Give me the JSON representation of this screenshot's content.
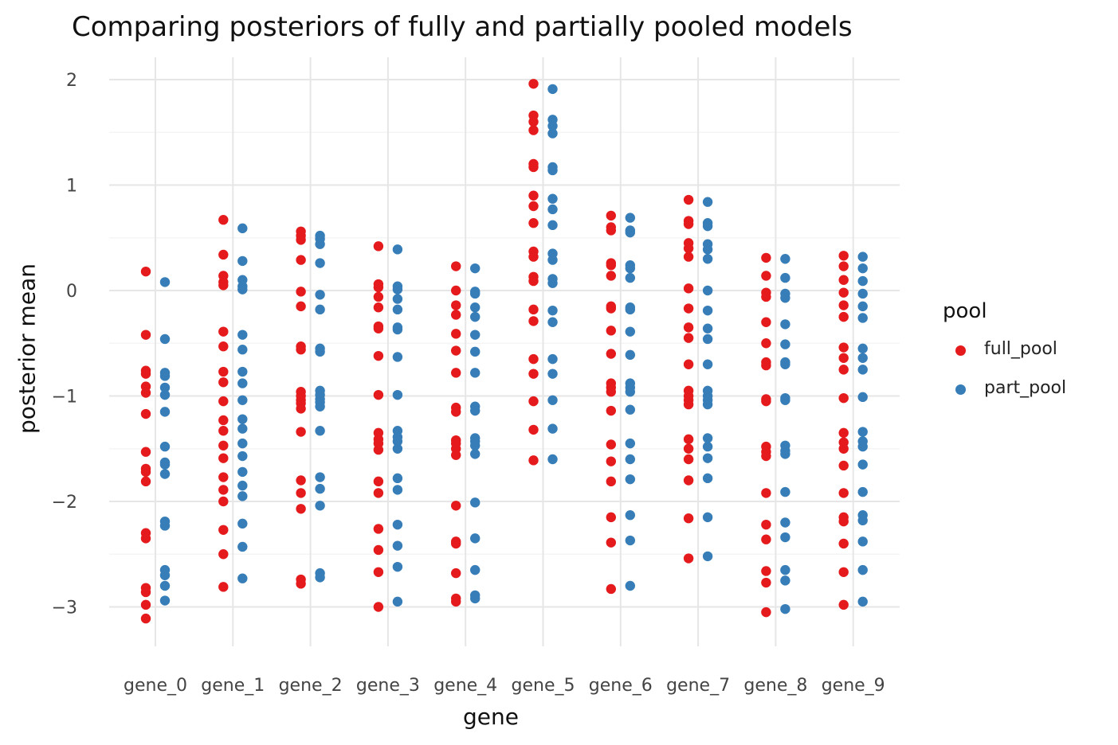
{
  "chart_data": {
    "type": "scatter",
    "title": "Comparing posteriors of fully and partially pooled models",
    "xlabel": "gene",
    "ylabel": "posterior mean",
    "categories": [
      "gene_0",
      "gene_1",
      "gene_2",
      "gene_3",
      "gene_4",
      "gene_5",
      "gene_6",
      "gene_7",
      "gene_8",
      "gene_9"
    ],
    "ylim": [
      -3.3,
      2.2
    ],
    "yticks": [
      2,
      1,
      0,
      -1,
      -2,
      -3
    ],
    "ytick_labels": [
      "2",
      "1",
      "0",
      "−1",
      "−2",
      "−3"
    ],
    "grid": true,
    "legend": {
      "title": "pool",
      "position": "right"
    },
    "series": [
      {
        "name": "full_pool",
        "color": "#e41a1c",
        "values": [
          [
            0.18,
            -0.42,
            -0.76,
            -0.79,
            -0.91,
            -0.97,
            -1.17,
            -1.53,
            -1.69,
            -1.72,
            -1.81,
            -2.3,
            -2.35,
            -2.82,
            -2.86,
            -2.98,
            -3.11
          ],
          [
            0.67,
            0.34,
            0.14,
            0.08,
            0.05,
            -0.39,
            -0.53,
            -0.77,
            -0.87,
            -1.05,
            -1.23,
            -1.33,
            -1.47,
            -1.59,
            -1.77,
            -1.89,
            -2.0,
            -2.27,
            -2.5,
            -2.81
          ],
          [
            0.56,
            0.52,
            0.48,
            0.29,
            -0.01,
            -0.15,
            -0.53,
            -0.56,
            -0.96,
            -1.0,
            -1.04,
            -1.07,
            -1.12,
            -1.34,
            -1.8,
            -1.92,
            -2.07,
            -2.74,
            -2.78
          ],
          [
            0.42,
            0.06,
            0.03,
            -0.06,
            -0.16,
            -0.34,
            -0.36,
            -0.62,
            -0.99,
            -1.35,
            -1.41,
            -1.45,
            -1.51,
            -1.81,
            -1.92,
            -2.26,
            -2.46,
            -2.67,
            -3.0
          ],
          [
            0.23,
            0.0,
            -0.14,
            -0.23,
            -0.41,
            -0.57,
            -0.78,
            -1.11,
            -1.15,
            -1.42,
            -1.45,
            -1.5,
            -1.56,
            -2.04,
            -2.38,
            -2.4,
            -2.68,
            -2.92,
            -2.95
          ],
          [
            1.96,
            1.66,
            1.6,
            1.52,
            1.2,
            1.17,
            0.9,
            0.8,
            0.64,
            0.37,
            0.32,
            0.13,
            0.09,
            -0.18,
            -0.29,
            -0.65,
            -0.79,
            -1.05,
            -1.32,
            -1.61
          ],
          [
            0.71,
            0.6,
            0.57,
            0.26,
            0.24,
            0.14,
            -0.15,
            -0.17,
            -0.38,
            -0.6,
            -0.88,
            -0.92,
            -0.96,
            -1.14,
            -1.46,
            -1.62,
            -1.81,
            -2.15,
            -2.39,
            -2.83
          ],
          [
            0.86,
            0.66,
            0.63,
            0.45,
            0.4,
            0.32,
            0.02,
            -0.17,
            -0.35,
            -0.45,
            -0.7,
            -0.95,
            -1.0,
            -1.04,
            -1.08,
            -1.41,
            -1.5,
            -1.6,
            -1.8,
            -2.16,
            -2.54
          ],
          [
            0.31,
            0.14,
            -0.02,
            -0.06,
            -0.3,
            -0.5,
            -0.68,
            -0.71,
            -1.03,
            -1.05,
            -1.48,
            -1.53,
            -1.57,
            -1.92,
            -2.22,
            -2.36,
            -2.66,
            -2.77,
            -3.05
          ],
          [
            0.33,
            0.23,
            0.1,
            -0.02,
            -0.14,
            -0.25,
            -0.54,
            -0.64,
            -0.75,
            -1.02,
            -1.35,
            -1.44,
            -1.5,
            -1.66,
            -1.92,
            -2.15,
            -2.19,
            -2.4,
            -2.67,
            -2.98
          ]
        ]
      },
      {
        "name": "part_pool",
        "color": "#377eb8",
        "values": [
          [
            0.08,
            -0.46,
            -0.78,
            -0.81,
            -0.92,
            -0.99,
            -1.15,
            -1.48,
            -1.63,
            -1.65,
            -1.74,
            -2.19,
            -2.23,
            -2.65,
            -2.7,
            -2.8,
            -2.94
          ],
          [
            0.59,
            0.28,
            0.1,
            0.04,
            0.01,
            -0.42,
            -0.56,
            -0.77,
            -0.88,
            -1.04,
            -1.22,
            -1.31,
            -1.45,
            -1.57,
            -1.72,
            -1.85,
            -1.95,
            -2.21,
            -2.43,
            -2.73
          ],
          [
            0.52,
            0.49,
            0.44,
            0.26,
            -0.04,
            -0.18,
            -0.55,
            -0.58,
            -0.95,
            -0.99,
            -1.03,
            -1.06,
            -1.1,
            -1.33,
            -1.77,
            -1.88,
            -2.04,
            -2.68,
            -2.72
          ],
          [
            0.39,
            0.04,
            0.01,
            -0.08,
            -0.18,
            -0.35,
            -0.37,
            -0.63,
            -0.99,
            -1.33,
            -1.39,
            -1.43,
            -1.5,
            -1.78,
            -1.89,
            -2.22,
            -2.42,
            -2.62,
            -2.95
          ],
          [
            0.21,
            -0.01,
            -0.03,
            -0.16,
            -0.25,
            -0.42,
            -0.58,
            -0.78,
            -1.1,
            -1.14,
            -1.4,
            -1.43,
            -1.47,
            -1.55,
            -2.01,
            -2.35,
            -2.65,
            -2.89,
            -2.92
          ],
          [
            1.91,
            1.62,
            1.56,
            1.49,
            1.17,
            1.14,
            0.87,
            0.77,
            0.62,
            0.35,
            0.29,
            0.11,
            0.07,
            -0.19,
            -0.3,
            -0.65,
            -0.79,
            -1.04,
            -1.31,
            -1.6
          ],
          [
            0.69,
            0.57,
            0.55,
            0.24,
            0.21,
            0.12,
            -0.16,
            -0.18,
            -0.39,
            -0.61,
            -0.88,
            -0.92,
            -0.96,
            -1.13,
            -1.45,
            -1.6,
            -1.79,
            -2.13,
            -2.37,
            -2.8
          ],
          [
            0.84,
            0.64,
            0.61,
            0.44,
            0.39,
            0.3,
            0.0,
            -0.19,
            -0.36,
            -0.46,
            -0.7,
            -0.95,
            -1.0,
            -1.04,
            -1.08,
            -1.4,
            -1.48,
            -1.59,
            -1.78,
            -2.15,
            -2.52
          ],
          [
            0.3,
            0.12,
            -0.03,
            -0.07,
            -0.32,
            -0.51,
            -0.68,
            -0.7,
            -1.02,
            -1.04,
            -1.47,
            -1.52,
            -1.55,
            -1.91,
            -2.2,
            -2.34,
            -2.65,
            -2.75,
            -3.02
          ],
          [
            0.32,
            0.21,
            0.09,
            -0.03,
            -0.15,
            -0.26,
            -0.55,
            -0.64,
            -0.75,
            -1.01,
            -1.34,
            -1.43,
            -1.48,
            -1.65,
            -1.91,
            -2.13,
            -2.18,
            -2.38,
            -2.65,
            -2.95
          ]
        ]
      }
    ]
  }
}
